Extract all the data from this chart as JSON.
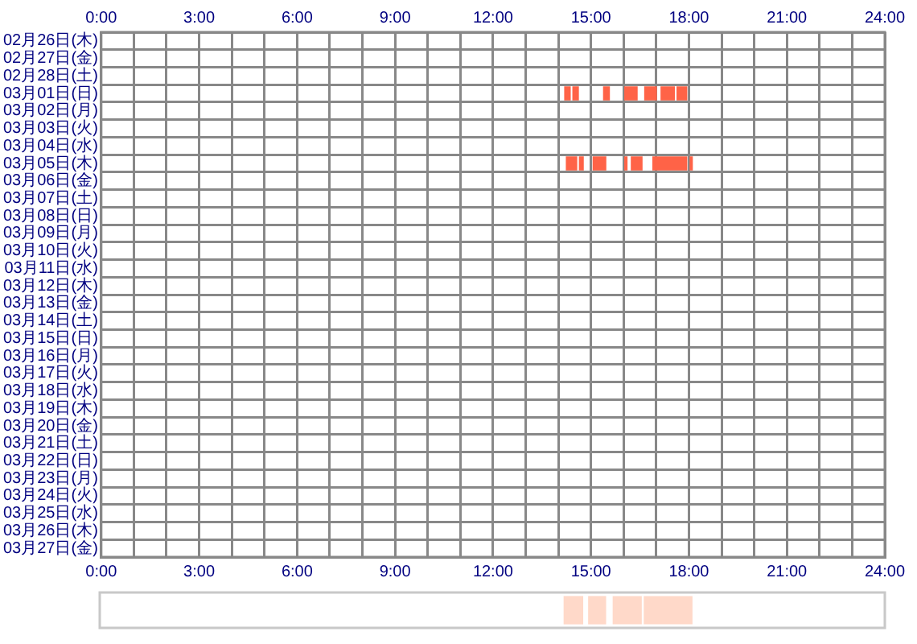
{
  "chart_data": [
    {
      "type": "bar",
      "orientation": "horizontal",
      "grid": true,
      "legend": false,
      "categories": [
        "02月26日(木)",
        "02月27日(金)",
        "02月28日(土)",
        "03月01日(日)",
        "03月02日(月)",
        "03月03日(火)",
        "03月04日(水)",
        "03月05日(木)",
        "03月06日(金)",
        "03月07日(土)",
        "03月08日(日)",
        "03月09日(月)",
        "03月10日(火)",
        "03月11日(水)",
        "03月12日(木)",
        "03月13日(金)",
        "03月14日(土)",
        "03月15日(日)",
        "03月16日(月)",
        "03月17日(火)",
        "03月18日(水)",
        "03月19日(木)",
        "03月20日(金)",
        "03月21日(土)",
        "03月22日(日)",
        "03月23日(月)",
        "03月24日(火)",
        "03月25日(水)",
        "03月26日(木)",
        "03月27日(金)"
      ],
      "series": [
        {
          "color": "#ff6347",
          "base": [
            null,
            null,
            null,
            14.18,
            null,
            null,
            null,
            14.23,
            null,
            null,
            null,
            null,
            null,
            null,
            null,
            null,
            null,
            null,
            null,
            null,
            null,
            null,
            null,
            null,
            null,
            null,
            null,
            null,
            null,
            null
          ],
          "values": [
            null,
            null,
            null,
            0.2,
            null,
            null,
            null,
            0.35,
            null,
            null,
            null,
            null,
            null,
            null,
            null,
            null,
            null,
            null,
            null,
            null,
            null,
            null,
            null,
            null,
            null,
            null,
            null,
            null,
            null,
            null
          ]
        },
        {
          "color": "#ff6347",
          "base": [
            null,
            null,
            null,
            14.43,
            null,
            null,
            null,
            14.63,
            null,
            null,
            null,
            null,
            null,
            null,
            null,
            null,
            null,
            null,
            null,
            null,
            null,
            null,
            null,
            null,
            null,
            null,
            null,
            null,
            null,
            null
          ],
          "values": [
            null,
            null,
            null,
            0.2,
            null,
            null,
            null,
            0.15,
            null,
            null,
            null,
            null,
            null,
            null,
            null,
            null,
            null,
            null,
            null,
            null,
            null,
            null,
            null,
            null,
            null,
            null,
            null,
            null,
            null,
            null
          ]
        },
        {
          "color": "#ff6347",
          "base": [
            null,
            null,
            null,
            15.37,
            null,
            null,
            null,
            15.05,
            null,
            null,
            null,
            null,
            null,
            null,
            null,
            null,
            null,
            null,
            null,
            null,
            null,
            null,
            null,
            null,
            null,
            null,
            null,
            null,
            null,
            null
          ],
          "values": [
            null,
            null,
            null,
            0.21,
            null,
            null,
            null,
            0.42,
            null,
            null,
            null,
            null,
            null,
            null,
            null,
            null,
            null,
            null,
            null,
            null,
            null,
            null,
            null,
            null,
            null,
            null,
            null,
            null,
            null,
            null
          ]
        },
        {
          "color": "#ff6347",
          "base": [
            null,
            null,
            null,
            16.02,
            null,
            null,
            null,
            16.02,
            null,
            null,
            null,
            null,
            null,
            null,
            null,
            null,
            null,
            null,
            null,
            null,
            null,
            null,
            null,
            null,
            null,
            null,
            null,
            null,
            null,
            null
          ],
          "values": [
            null,
            null,
            null,
            0.41,
            null,
            null,
            null,
            0.1,
            null,
            null,
            null,
            null,
            null,
            null,
            null,
            null,
            null,
            null,
            null,
            null,
            null,
            null,
            null,
            null,
            null,
            null,
            null,
            null,
            null,
            null
          ]
        },
        {
          "color": "#ff6347",
          "base": [
            null,
            null,
            null,
            16.63,
            null,
            null,
            null,
            16.22,
            null,
            null,
            null,
            null,
            null,
            null,
            null,
            null,
            null,
            null,
            null,
            null,
            null,
            null,
            null,
            null,
            null,
            null,
            null,
            null,
            null,
            null
          ],
          "values": [
            null,
            null,
            null,
            0.39,
            null,
            null,
            null,
            0.36,
            null,
            null,
            null,
            null,
            null,
            null,
            null,
            null,
            null,
            null,
            null,
            null,
            null,
            null,
            null,
            null,
            null,
            null,
            null,
            null,
            null,
            null
          ]
        },
        {
          "color": "#ff6347",
          "base": [
            null,
            null,
            null,
            17.13,
            null,
            null,
            null,
            16.88,
            null,
            null,
            null,
            null,
            null,
            null,
            null,
            null,
            null,
            null,
            null,
            null,
            null,
            null,
            null,
            null,
            null,
            null,
            null,
            null,
            null,
            null
          ],
          "values": [
            null,
            null,
            null,
            0.44,
            null,
            null,
            null,
            1.07,
            null,
            null,
            null,
            null,
            null,
            null,
            null,
            null,
            null,
            null,
            null,
            null,
            null,
            null,
            null,
            null,
            null,
            null,
            null,
            null,
            null,
            null
          ]
        },
        {
          "color": "#ff6347",
          "base": [
            null,
            null,
            null,
            17.62,
            null,
            null,
            null,
            18.02,
            null,
            null,
            null,
            null,
            null,
            null,
            null,
            null,
            null,
            null,
            null,
            null,
            null,
            null,
            null,
            null,
            null,
            null,
            null,
            null,
            null,
            null
          ],
          "values": [
            null,
            null,
            null,
            0.33,
            null,
            null,
            null,
            0.1,
            null,
            null,
            null,
            null,
            null,
            null,
            null,
            null,
            null,
            null,
            null,
            null,
            null,
            null,
            null,
            null,
            null,
            null,
            null,
            null,
            null,
            null
          ]
        }
      ],
      "xlim": [
        0,
        24
      ],
      "xticks": [
        {
          "value": 0,
          "label": "0:00"
        },
        {
          "value": 1,
          "label": null
        },
        {
          "value": 2,
          "label": null
        },
        {
          "value": 3,
          "label": "3:00"
        },
        {
          "value": 4,
          "label": null
        },
        {
          "value": 5,
          "label": null
        },
        {
          "value": 6,
          "label": "6:00"
        },
        {
          "value": 7,
          "label": null
        },
        {
          "value": 8,
          "label": null
        },
        {
          "value": 9,
          "label": "9:00"
        },
        {
          "value": 10,
          "label": null
        },
        {
          "value": 11,
          "label": null
        },
        {
          "value": 12,
          "label": "12:00"
        },
        {
          "value": 13,
          "label": null
        },
        {
          "value": 14,
          "label": null
        },
        {
          "value": 15,
          "label": "15:00"
        },
        {
          "value": 16,
          "label": null
        },
        {
          "value": 17,
          "label": null
        },
        {
          "value": 18,
          "label": "18:00"
        },
        {
          "value": 19,
          "label": null
        },
        {
          "value": 20,
          "label": null
        },
        {
          "value": 21,
          "label": "21:00"
        },
        {
          "value": 22,
          "label": null
        },
        {
          "value": 23,
          "label": null
        },
        {
          "value": 24,
          "label": "24:00"
        }
      ],
      "x2lim": [
        0,
        24
      ],
      "x2ticks": [
        {
          "value": 0,
          "label": "0:00"
        },
        {
          "value": 1,
          "label": null
        },
        {
          "value": 2,
          "label": null
        },
        {
          "value": 3,
          "label": "3:00"
        },
        {
          "value": 4,
          "label": null
        },
        {
          "value": 5,
          "label": null
        },
        {
          "value": 6,
          "label": "6:00"
        },
        {
          "value": 7,
          "label": null
        },
        {
          "value": 8,
          "label": null
        },
        {
          "value": 9,
          "label": "9:00"
        },
        {
          "value": 10,
          "label": null
        },
        {
          "value": 11,
          "label": null
        },
        {
          "value": 12,
          "label": "12:00"
        },
        {
          "value": 13,
          "label": null
        },
        {
          "value": 14,
          "label": null
        },
        {
          "value": 15,
          "label": "15:00"
        },
        {
          "value": 16,
          "label": null
        },
        {
          "value": 17,
          "label": null
        },
        {
          "value": 18,
          "label": "18:00"
        },
        {
          "value": 19,
          "label": null
        },
        {
          "value": 20,
          "label": null
        },
        {
          "value": 21,
          "label": "21:00"
        },
        {
          "value": 22,
          "label": null
        },
        {
          "value": 23,
          "label": null
        },
        {
          "value": 24,
          "label": "24:00"
        }
      ]
    },
    {
      "type": "bar",
      "orientation": "horizontal",
      "legend": false,
      "tick_labels": false,
      "categories": [
        null
      ],
      "xlim": [
        0,
        24
      ],
      "series": [
        {
          "color": "#ffd9c9",
          "base": [
            14.18
          ],
          "values": [
            0.6
          ]
        },
        {
          "color": "#ffd9c9",
          "base": [
            14.93
          ],
          "values": [
            0.55
          ]
        },
        {
          "color": "#ffd9c9",
          "base": [
            15.68
          ],
          "values": [
            0.89
          ]
        },
        {
          "color": "#ffd9c9",
          "base": [
            16.63
          ],
          "values": [
            1.49
          ]
        }
      ]
    }
  ]
}
